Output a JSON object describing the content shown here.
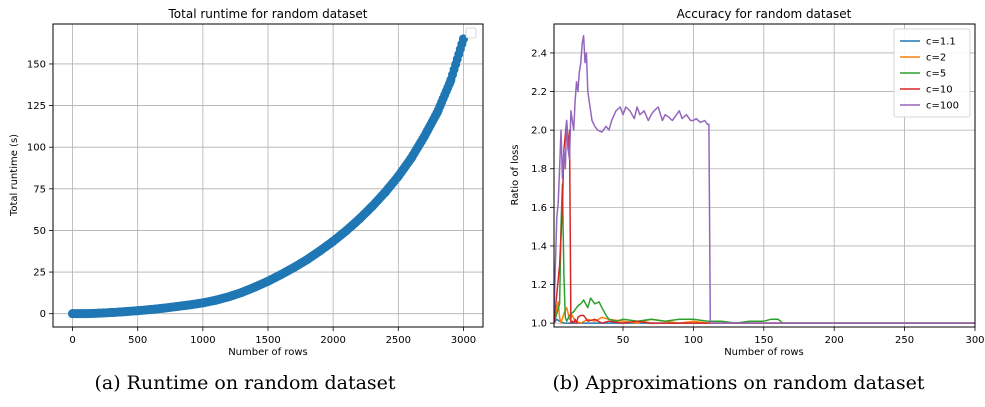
{
  "captions": {
    "a": "(a) Runtime on random dataset",
    "b": "(b) Approximations on random dataset"
  },
  "chart_data": [
    {
      "type": "scatter",
      "title": "Total runtime for random dataset",
      "xlabel": "Number of rows",
      "ylabel": "Total runtime (s)",
      "xlim": [
        -150,
        3150
      ],
      "ylim": [
        -8,
        174
      ],
      "xticks": [
        0,
        500,
        1000,
        1500,
        2000,
        2500,
        3000
      ],
      "yticks": [
        0,
        25,
        50,
        75,
        100,
        125,
        150
      ],
      "grid": true,
      "legend": "top-right (empty)",
      "marker_color": "#1f77b4",
      "x": [
        0,
        100,
        200,
        300,
        400,
        500,
        600,
        700,
        800,
        900,
        1000,
        1100,
        1200,
        1300,
        1400,
        1500,
        1600,
        1700,
        1800,
        1900,
        2000,
        2100,
        2200,
        2300,
        2400,
        2500,
        2600,
        2700,
        2800,
        2900,
        3000
      ],
      "y": [
        0,
        0,
        0.3,
        0.7,
        1.2,
        1.8,
        2.5,
        3.3,
        4.3,
        5.3,
        6.5,
        8.1,
        10.2,
        12.8,
        16.0,
        19.5,
        23.5,
        27.8,
        32.5,
        37.8,
        43.5,
        49.8,
        56.8,
        64.5,
        73.0,
        82.5,
        93.5,
        106.5,
        121.0,
        139.5,
        165.0
      ]
    },
    {
      "type": "line",
      "title": "Accuracy for random dataset",
      "xlabel": "Number of rows",
      "ylabel": "Ratio of loss",
      "xlim": [
        1,
        300
      ],
      "ylim": [
        0.98,
        2.55
      ],
      "xticks": [
        50,
        100,
        150,
        200,
        250,
        300
      ],
      "yticks": [
        1.0,
        1.2,
        1.4,
        1.6,
        1.8,
        2.0,
        2.2,
        2.4
      ],
      "grid": true,
      "legend": "top-right",
      "series": [
        {
          "name": "c=1.1",
          "color": "#1f77b4",
          "x": [
            1,
            3,
            5,
            8,
            12,
            20,
            40,
            60,
            80,
            100,
            150,
            200,
            250,
            300
          ],
          "y": [
            1.0,
            1.02,
            1.01,
            1.0,
            1.0,
            1.0,
            1.0,
            1.0,
            1.0,
            1.0,
            1.0,
            1.0,
            1.0,
            1.0
          ]
        },
        {
          "name": "c=2",
          "color": "#ff7f0e",
          "x": [
            1,
            3,
            4,
            5,
            6,
            8,
            10,
            12,
            14,
            16,
            20,
            25,
            30,
            35,
            40,
            50,
            60,
            70,
            80,
            90,
            100,
            110,
            111,
            112,
            150,
            200,
            250,
            300
          ],
          "y": [
            1.0,
            1.08,
            1.11,
            1.03,
            1.0,
            1.05,
            1.08,
            1.02,
            1.04,
            1.01,
            1.0,
            1.02,
            1.01,
            1.03,
            1.02,
            1.01,
            1.0,
            1.02,
            1.01,
            1.0,
            1.01,
            1.0,
            1.0,
            1.0,
            1.0,
            1.0,
            1.0,
            1.0
          ]
        },
        {
          "name": "c=5",
          "color": "#2ca02c",
          "x": [
            1,
            3,
            5,
            6,
            7,
            8,
            9,
            10,
            12,
            15,
            18,
            20,
            22,
            25,
            27,
            30,
            33,
            35,
            38,
            40,
            45,
            50,
            60,
            70,
            80,
            90,
            100,
            110,
            120,
            130,
            140,
            150,
            155,
            160,
            162,
            163,
            200,
            250,
            300
          ],
          "y": [
            1.0,
            1.05,
            1.1,
            1.5,
            1.72,
            1.25,
            1.03,
            1.01,
            1.04,
            1.06,
            1.09,
            1.1,
            1.12,
            1.08,
            1.13,
            1.1,
            1.11,
            1.08,
            1.04,
            1.02,
            1.01,
            1.02,
            1.01,
            1.02,
            1.01,
            1.02,
            1.02,
            1.01,
            1.01,
            1.0,
            1.01,
            1.01,
            1.02,
            1.02,
            1.01,
            1.0,
            1.0,
            1.0,
            1.0
          ]
        },
        {
          "name": "c=10",
          "color": "#d62728",
          "x": [
            1,
            3,
            5,
            7,
            8,
            10,
            11,
            12,
            13,
            14,
            15,
            16,
            17,
            18,
            20,
            22,
            25,
            30,
            35,
            40,
            50,
            60,
            70,
            80,
            90,
            100,
            110,
            150,
            200,
            250,
            300
          ],
          "y": [
            1.0,
            1.15,
            1.3,
            1.6,
            1.9,
            2.05,
            1.9,
            2.0,
            1.0,
            1.01,
            1.0,
            1.02,
            1.0,
            1.03,
            1.04,
            1.04,
            1.01,
            1.02,
            1.0,
            1.01,
            1.0,
            1.01,
            1.0,
            1.0,
            1.0,
            1.0,
            1.0,
            1.0,
            1.0,
            1.0,
            1.0
          ]
        },
        {
          "name": "c=100",
          "color": "#9467bd",
          "x": [
            1,
            2,
            3,
            4,
            5,
            6,
            7,
            8,
            9,
            10,
            11,
            12,
            13,
            14,
            15,
            16,
            17,
            18,
            19,
            20,
            21,
            22,
            23,
            24,
            25,
            26,
            27,
            28,
            30,
            32,
            35,
            38,
            40,
            42,
            45,
            48,
            50,
            52,
            55,
            58,
            60,
            62,
            65,
            68,
            70,
            72,
            75,
            78,
            80,
            82,
            85,
            88,
            90,
            92,
            95,
            98,
            100,
            102,
            105,
            108,
            110,
            111,
            112,
            120,
            150,
            200,
            250,
            300
          ],
          "y": [
            1.05,
            1.3,
            1.55,
            1.62,
            1.8,
            2.0,
            1.75,
            1.9,
            1.8,
            2.05,
            1.9,
            1.85,
            2.1,
            2.05,
            2.0,
            2.15,
            2.25,
            2.2,
            2.3,
            2.35,
            2.45,
            2.49,
            2.35,
            2.4,
            2.2,
            2.15,
            2.1,
            2.05,
            2.02,
            2.0,
            1.99,
            2.02,
            2.0,
            2.05,
            2.1,
            2.12,
            2.08,
            2.12,
            2.1,
            2.06,
            2.12,
            2.08,
            2.1,
            2.05,
            2.08,
            2.1,
            2.12,
            2.05,
            2.08,
            2.07,
            2.05,
            2.08,
            2.1,
            2.06,
            2.08,
            2.05,
            2.05,
            2.06,
            2.04,
            2.05,
            2.03,
            2.03,
            1.0,
            1.0,
            1.0,
            1.0,
            1.0,
            1.0
          ]
        }
      ]
    }
  ]
}
